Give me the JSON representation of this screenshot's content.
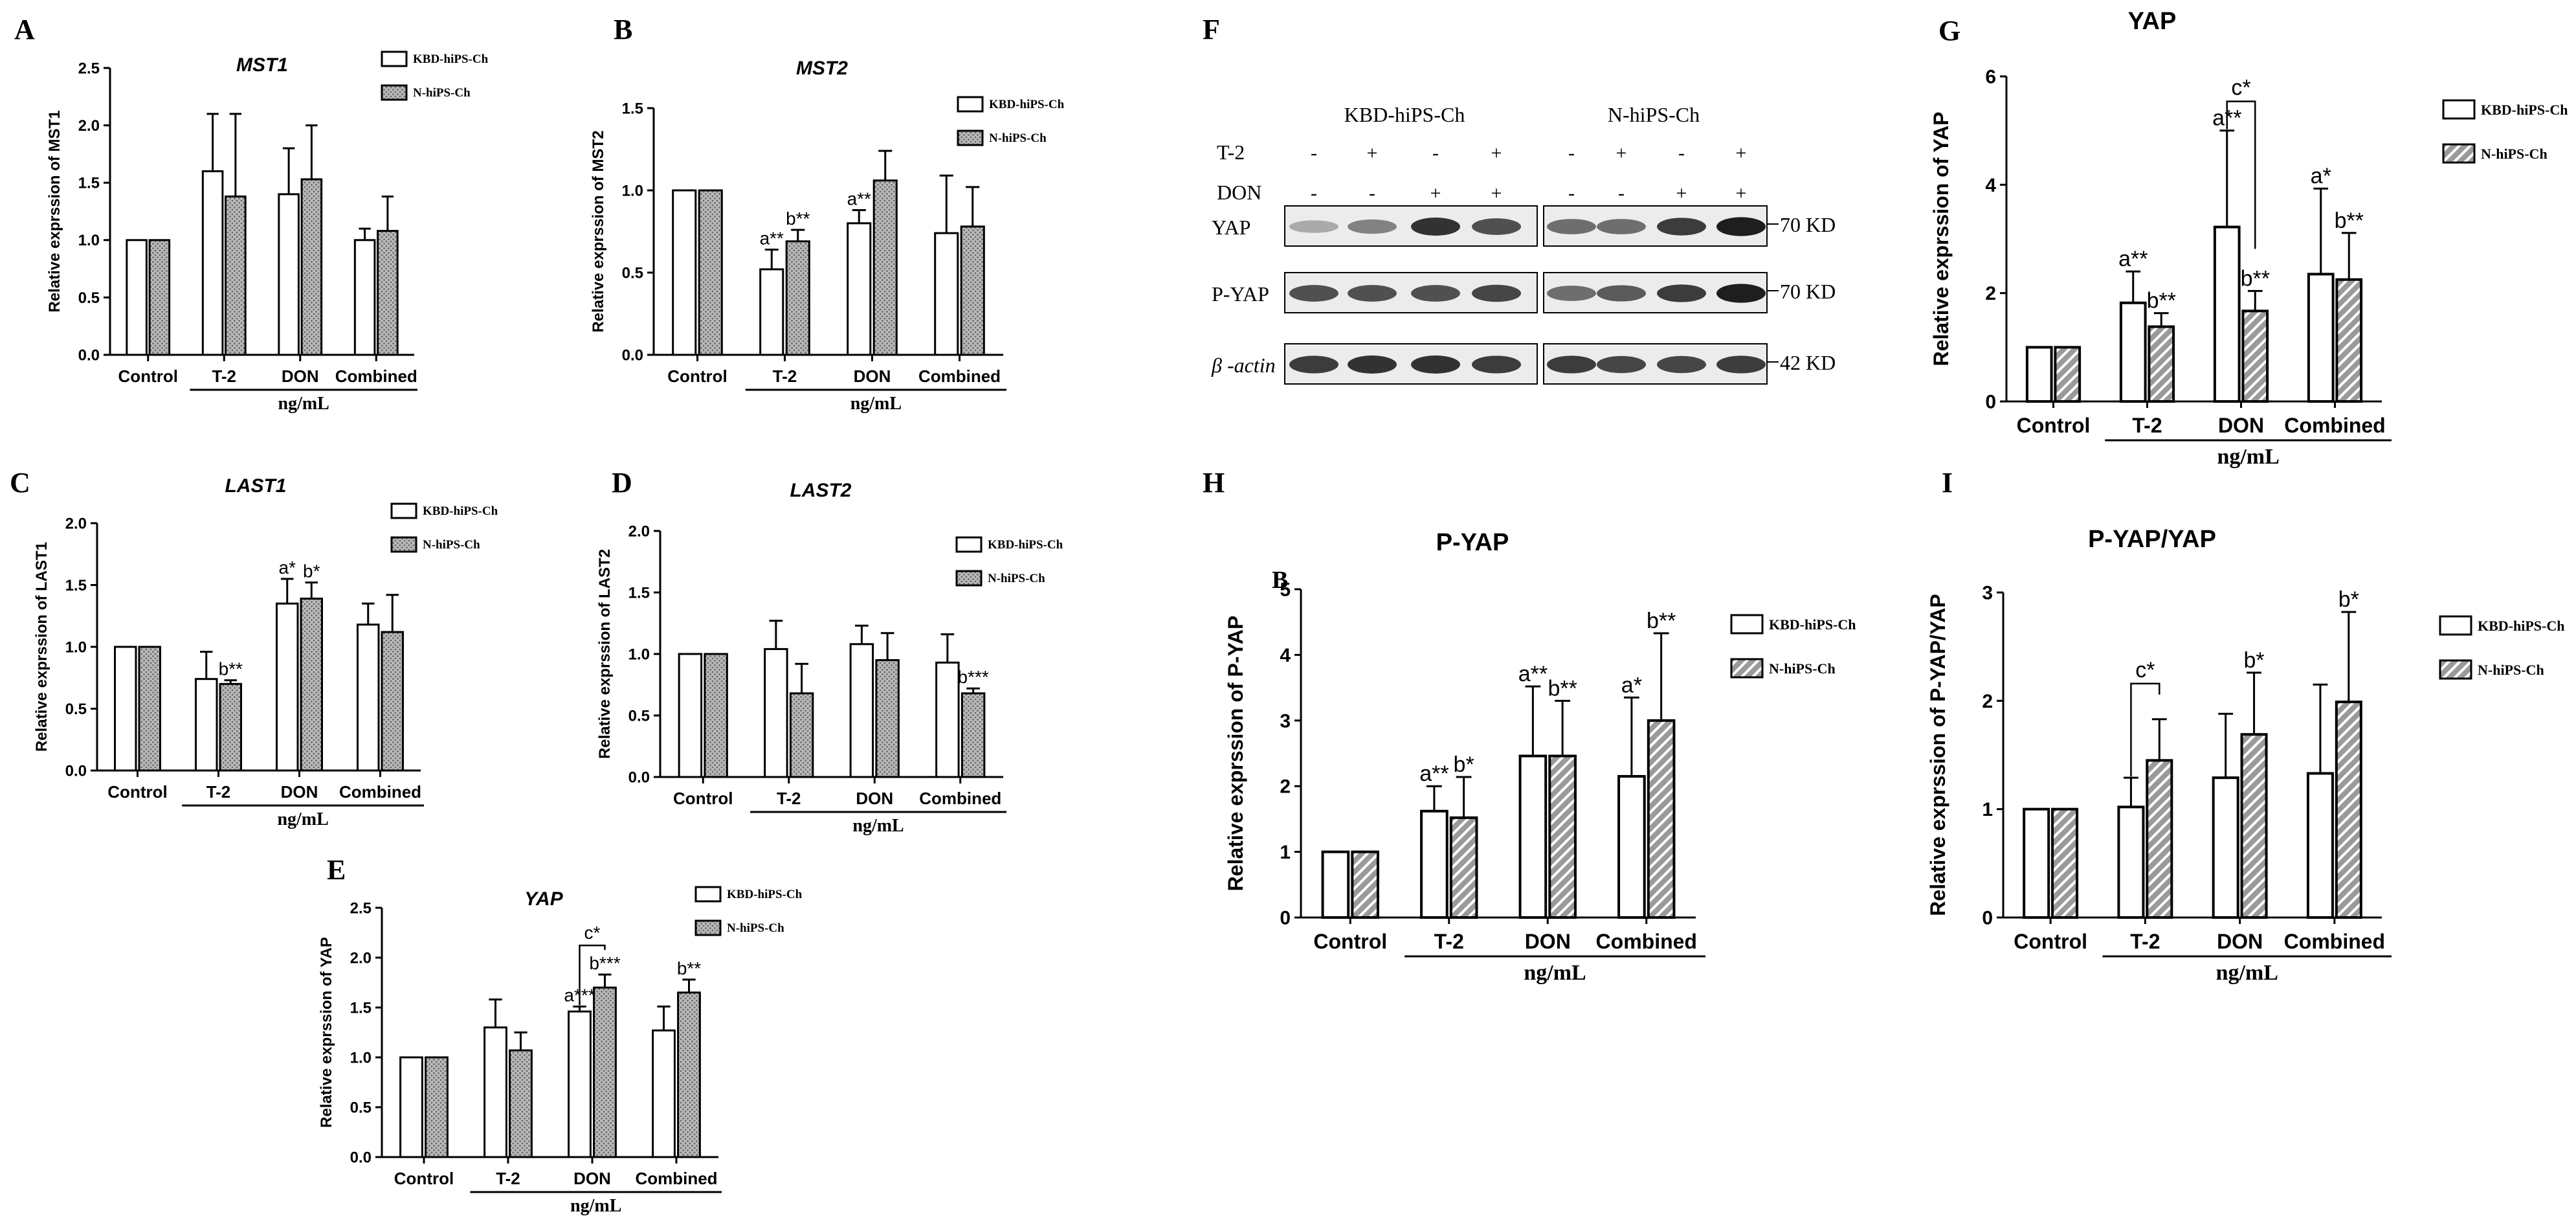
{
  "colors": {
    "ink": "#000000",
    "bar_fill_a": "#ffffff",
    "bar_fill_b_dots": "#a8a8a8",
    "bar_fill_b_hatch": "#8c8c8c",
    "blot_bg": "#e9e9e9",
    "band": "#1a1a1a"
  },
  "chart_data": [
    {
      "letter": "A",
      "type": "bar",
      "title": "MST1",
      "title_italic": true,
      "ylabel": "Relative exprssion of MST1",
      "xgroup_label": "ng/mL",
      "categories": [
        "Control",
        "T-2",
        "DON",
        "Combined"
      ],
      "ylim": [
        0,
        2.5
      ],
      "yticks": [
        "0.0",
        "0.5",
        "1.0",
        "1.5",
        "2.0",
        "2.5"
      ],
      "legend": [
        "KBD-hiPS-Ch",
        "N-hiPS-Ch"
      ],
      "pattern": "dots",
      "series": [
        {
          "name": "KBD-hiPS-Ch",
          "values": [
            1.0,
            1.6,
            1.4,
            1.0
          ],
          "errors": [
            0,
            0.5,
            0.4,
            0.1
          ]
        },
        {
          "name": "N-hiPS-Ch",
          "values": [
            1.0,
            1.38,
            1.53,
            1.08
          ],
          "errors": [
            0,
            0.72,
            0.47,
            0.3
          ]
        }
      ],
      "annotations": []
    },
    {
      "letter": "B",
      "type": "bar",
      "title": "MST2",
      "title_italic": true,
      "ylabel": "Relative exprssion of MST2",
      "xgroup_label": "ng/mL",
      "categories": [
        "Control",
        "T-2",
        "DON",
        "Combined"
      ],
      "ylim": [
        0,
        1.5
      ],
      "yticks": [
        "0.0",
        "0.5",
        "1.0",
        "1.5"
      ],
      "legend": [
        "KBD-hiPS-Ch",
        "N-hiPS-Ch"
      ],
      "pattern": "dots",
      "series": [
        {
          "name": "KBD-hiPS-Ch",
          "values": [
            1.0,
            0.52,
            0.8,
            0.74
          ],
          "errors": [
            0,
            0.12,
            0.08,
            0.35
          ]
        },
        {
          "name": "N-hiPS-Ch",
          "values": [
            1.0,
            0.69,
            1.06,
            0.78
          ],
          "errors": [
            0,
            0.07,
            0.18,
            0.24
          ]
        }
      ],
      "annotations": [
        {
          "text": "a**",
          "group": 1,
          "series": 0
        },
        {
          "text": "b**",
          "group": 1,
          "series": 1
        },
        {
          "text": "a**",
          "group": 2,
          "series": 0
        }
      ]
    },
    {
      "letter": "C",
      "type": "bar",
      "title": "LAST1",
      "title_italic": true,
      "ylabel": "Relative exprssion of LAST1",
      "xgroup_label": "ng/mL",
      "categories": [
        "Control",
        "T-2",
        "DON",
        "Combined"
      ],
      "ylim": [
        0,
        2.0
      ],
      "yticks": [
        "0.0",
        "0.5",
        "1.0",
        "1.5",
        "2.0"
      ],
      "legend": [
        "KBD-hiPS-Ch",
        "N-hiPS-Ch"
      ],
      "pattern": "dots",
      "series": [
        {
          "name": "KBD-hiPS-Ch",
          "values": [
            1.0,
            0.74,
            1.35,
            1.18
          ],
          "errors": [
            0,
            0.22,
            0.2,
            0.17
          ]
        },
        {
          "name": "N-hiPS-Ch",
          "values": [
            1.0,
            0.7,
            1.39,
            1.12
          ],
          "errors": [
            0,
            0.03,
            0.13,
            0.3
          ]
        }
      ],
      "annotations": [
        {
          "text": "b**",
          "group": 1,
          "series": 1
        },
        {
          "text": "a*",
          "group": 2,
          "series": 0
        },
        {
          "text": "b*",
          "group": 2,
          "series": 1
        }
      ]
    },
    {
      "letter": "D",
      "type": "bar",
      "title": "LAST2",
      "title_italic": true,
      "ylabel": "Relative exprssion of LAST2",
      "xgroup_label": "ng/mL",
      "categories": [
        "Control",
        "T-2",
        "DON",
        "Combined"
      ],
      "ylim": [
        0,
        2.0
      ],
      "yticks": [
        "0.0",
        "0.5",
        "1.0",
        "1.5",
        "2.0"
      ],
      "legend": [
        "KBD-hiPS-Ch",
        "N-hiPS-Ch"
      ],
      "pattern": "dots",
      "series": [
        {
          "name": "KBD-hiPS-Ch",
          "values": [
            1.0,
            1.04,
            1.08,
            0.93
          ],
          "errors": [
            0,
            0.23,
            0.15,
            0.23
          ]
        },
        {
          "name": "N-hiPS-Ch",
          "values": [
            1.0,
            0.68,
            0.95,
            0.68
          ],
          "errors": [
            0,
            0.24,
            0.22,
            0.04
          ]
        }
      ],
      "annotations": [
        {
          "text": "b***",
          "group": 3,
          "series": 1
        }
      ]
    },
    {
      "letter": "E",
      "type": "bar",
      "title": "YAP",
      "title_italic": true,
      "ylabel": "Relative exprssion of YAP",
      "xgroup_label": "ng/mL",
      "categories": [
        "Control",
        "T-2",
        "DON",
        "Combined"
      ],
      "ylim": [
        0,
        2.5
      ],
      "yticks": [
        "0.0",
        "0.5",
        "1.0",
        "1.5",
        "2.0",
        "2.5"
      ],
      "legend": [
        "KBD-hiPS-Ch",
        "N-hiPS-Ch"
      ],
      "pattern": "dots",
      "series": [
        {
          "name": "KBD-hiPS-Ch",
          "values": [
            1.0,
            1.3,
            1.46,
            1.27
          ],
          "errors": [
            0,
            0.28,
            0.05,
            0.24
          ]
        },
        {
          "name": "N-hiPS-Ch",
          "values": [
            1.0,
            1.07,
            1.7,
            1.65
          ],
          "errors": [
            0,
            0.18,
            0.13,
            0.13
          ]
        }
      ],
      "annotations": [
        {
          "text": "a***",
          "group": 2,
          "series": 0
        },
        {
          "text": "b***",
          "group": 2,
          "series": 1
        },
        {
          "text": "b**",
          "group": 3,
          "series": 1
        }
      ],
      "bracket": {
        "text": "c*",
        "group": 2
      }
    },
    {
      "letter": "G",
      "type": "bar",
      "title": "YAP",
      "title_italic": false,
      "ylabel": "Relative exprssion of YAP",
      "xgroup_label": "ng/mL",
      "categories": [
        "Control",
        "T-2",
        "DON",
        "Combined"
      ],
      "ylim": [
        0,
        6
      ],
      "yticks": [
        "0",
        "2",
        "4",
        "6"
      ],
      "legend": [
        "KBD-hiPS-Ch",
        "N-hiPS-Ch"
      ],
      "pattern": "hatch",
      "series": [
        {
          "name": "KBD-hiPS-Ch",
          "values": [
            1.0,
            1.82,
            3.22,
            2.35
          ],
          "errors": [
            0,
            0.58,
            1.78,
            1.58
          ]
        },
        {
          "name": "N-hiPS-Ch",
          "values": [
            1.0,
            1.38,
            1.67,
            2.25
          ],
          "errors": [
            0,
            0.25,
            0.37,
            0.86
          ]
        }
      ],
      "annotations": [
        {
          "text": "a**",
          "group": 1,
          "series": 0
        },
        {
          "text": "b**",
          "group": 1,
          "series": 1
        },
        {
          "text": "a**",
          "group": 2,
          "series": 0
        },
        {
          "text": "b**",
          "group": 2,
          "series": 1
        },
        {
          "text": "a*",
          "group": 3,
          "series": 0
        },
        {
          "text": "b**",
          "group": 3,
          "series": 1
        }
      ],
      "bracket": {
        "text": "c*",
        "group": 2
      }
    },
    {
      "letter": "H",
      "type": "bar",
      "title": "P-YAP",
      "title_italic": false,
      "ylabel": "Relative exprssion of P-YAP",
      "xgroup_label": "ng/mL",
      "categories": [
        "Control",
        "T-2",
        "DON",
        "Combined"
      ],
      "ylim": [
        0,
        5
      ],
      "yticks": [
        "0",
        "1",
        "2",
        "3",
        "4",
        "5"
      ],
      "legend": [
        "KBD-hiPS-Ch",
        "N-hiPS-Ch"
      ],
      "pattern": "hatch",
      "series": [
        {
          "name": "KBD-hiPS-Ch",
          "values": [
            1.0,
            1.62,
            2.46,
            2.15
          ],
          "errors": [
            0,
            0.38,
            1.06,
            1.2
          ]
        },
        {
          "name": "N-hiPS-Ch",
          "values": [
            1.0,
            1.52,
            2.46,
            3.0
          ],
          "errors": [
            0,
            0.62,
            0.84,
            1.33
          ]
        }
      ],
      "annotations": [
        {
          "text": "a**",
          "group": 1,
          "series": 0
        },
        {
          "text": "b*",
          "group": 1,
          "series": 1
        },
        {
          "text": "a**",
          "group": 2,
          "series": 0
        },
        {
          "text": "b**",
          "group": 2,
          "series": 1
        },
        {
          "text": "a*",
          "group": 3,
          "series": 0
        },
        {
          "text": "b**",
          "group": 3,
          "series": 1
        }
      ],
      "stray_label": "B"
    },
    {
      "letter": "I",
      "type": "bar",
      "title": "P-YAP/YAP",
      "title_italic": false,
      "ylabel": "Relative exprssion of P-YAP/YAP",
      "xgroup_label": "ng/mL",
      "categories": [
        "Control",
        "T-2",
        "DON",
        "Combined"
      ],
      "ylim": [
        0,
        3
      ],
      "yticks": [
        "0",
        "1",
        "2",
        "3"
      ],
      "legend": [
        "KBD-hiPS-Ch",
        "N-hiPS-Ch"
      ],
      "pattern": "hatch",
      "series": [
        {
          "name": "KBD-hiPS-Ch",
          "values": [
            1.0,
            1.02,
            1.29,
            1.33
          ],
          "errors": [
            0,
            0.27,
            0.59,
            0.82
          ]
        },
        {
          "name": "N-hiPS-Ch",
          "values": [
            1.0,
            1.45,
            1.69,
            1.99
          ],
          "errors": [
            0,
            0.38,
            0.57,
            0.83
          ]
        }
      ],
      "annotations": [
        {
          "text": "b*",
          "group": 2,
          "series": 1
        },
        {
          "text": "b*",
          "group": 3,
          "series": 1
        }
      ],
      "bracket": {
        "text": "c*",
        "group": 1
      }
    }
  ],
  "western_blot": {
    "letter": "F",
    "cell_lines": [
      "KBD-hiPS-Ch",
      "N-hiPS-Ch"
    ],
    "treatments": [
      {
        "label": "T-2",
        "signs": [
          "-",
          "+",
          "-",
          "+",
          "-",
          "+",
          "-",
          "+"
        ]
      },
      {
        "label": "DON",
        "signs": [
          "-",
          "-",
          "+",
          "+",
          "-",
          "-",
          "+",
          "+"
        ]
      }
    ],
    "rows": [
      {
        "label": "YAP",
        "size": "70 KD",
        "intensity": [
          0.25,
          0.45,
          0.85,
          0.7,
          0.55,
          0.55,
          0.8,
          0.95
        ]
      },
      {
        "label": "P-YAP",
        "size": "70 KD",
        "intensity": [
          0.7,
          0.7,
          0.7,
          0.75,
          0.55,
          0.65,
          0.8,
          0.95
        ]
      },
      {
        "label": "β -actin",
        "size": "42 KD",
        "intensity": [
          0.8,
          0.85,
          0.85,
          0.8,
          0.8,
          0.75,
          0.75,
          0.8
        ]
      }
    ]
  }
}
